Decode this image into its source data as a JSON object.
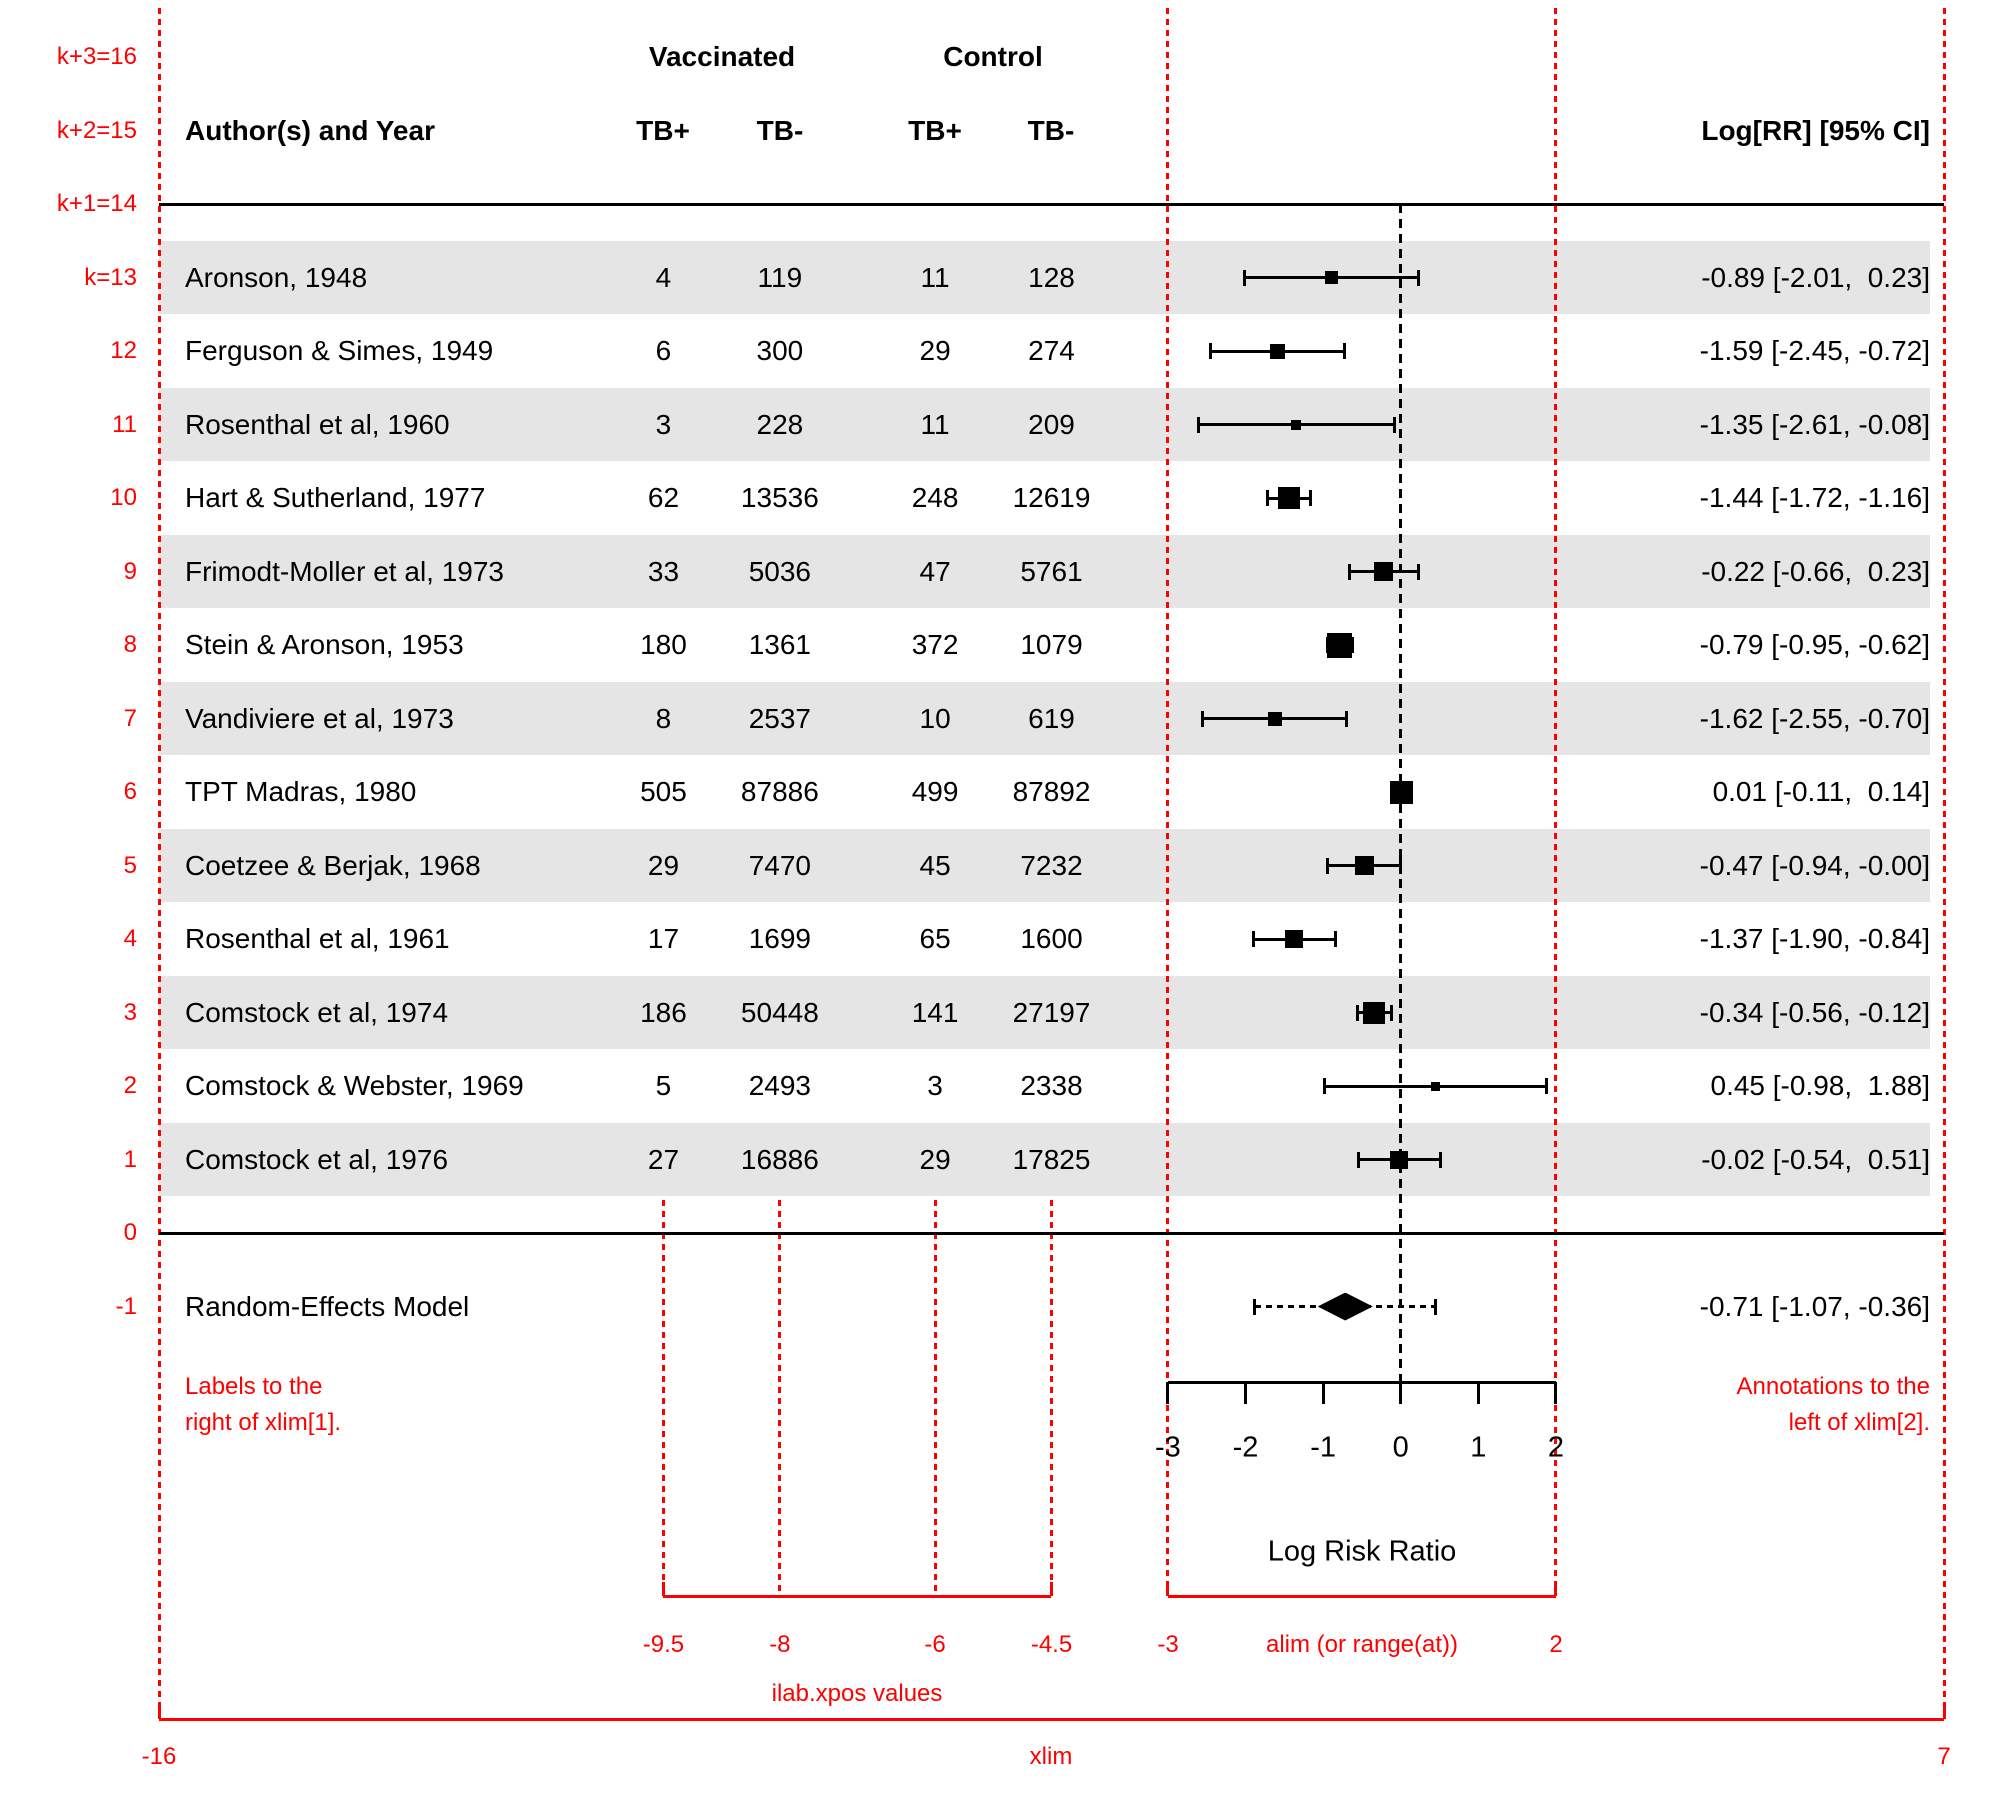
{
  "colors": {
    "accent_red": "#FF0000",
    "band_grey": "#E5E5E5",
    "ink": "#000000"
  },
  "header": {
    "author": "Author(s) and Year",
    "group_vaccinated": "Vaccinated",
    "group_control": "Control",
    "cols": [
      "TB+",
      "TB-",
      "TB+",
      "TB-"
    ],
    "annotation": "Log[RR] [95% CI]"
  },
  "chart_data": {
    "type": "forest",
    "xlabel": "Log Risk Ratio",
    "xlim": [
      -16,
      7
    ],
    "alim": [
      -3,
      2
    ],
    "at": [
      -3,
      -2,
      -1,
      0,
      1,
      2
    ],
    "ilab_xpos": [
      -9.5,
      -8,
      -6,
      -4.5
    ],
    "rows": [
      {
        "row": 13,
        "author": "Aronson, 1948",
        "counts": [
          4,
          119,
          11,
          128
        ],
        "est": -0.89,
        "lo": -2.01,
        "hi": 0.23,
        "size": 13,
        "annotation": "-0.89 [-2.01,  0.23]",
        "shaded": true
      },
      {
        "row": 12,
        "author": "Ferguson & Simes, 1949",
        "counts": [
          6,
          300,
          29,
          274
        ],
        "est": -1.59,
        "lo": -2.45,
        "hi": -0.72,
        "size": 15,
        "annotation": "-1.59 [-2.45, -0.72]",
        "shaded": false
      },
      {
        "row": 11,
        "author": "Rosenthal et al, 1960",
        "counts": [
          3,
          228,
          11,
          209
        ],
        "est": -1.35,
        "lo": -2.61,
        "hi": -0.08,
        "size": 10,
        "annotation": "-1.35 [-2.61, -0.08]",
        "shaded": true
      },
      {
        "row": 10,
        "author": "Hart & Sutherland, 1977",
        "counts": [
          62,
          13536,
          248,
          12619
        ],
        "est": -1.44,
        "lo": -1.72,
        "hi": -1.16,
        "size": 22,
        "annotation": "-1.44 [-1.72, -1.16]",
        "shaded": false
      },
      {
        "row": 9,
        "author": "Frimodt-Moller et al, 1973",
        "counts": [
          33,
          5036,
          47,
          5761
        ],
        "est": -0.22,
        "lo": -0.66,
        "hi": 0.23,
        "size": 19,
        "annotation": "-0.22 [-0.66,  0.23]",
        "shaded": true
      },
      {
        "row": 8,
        "author": "Stein & Aronson, 1953",
        "counts": [
          180,
          1361,
          372,
          1079
        ],
        "est": -0.79,
        "lo": -0.95,
        "hi": -0.62,
        "size": 25,
        "annotation": "-0.79 [-0.95, -0.62]",
        "shaded": false
      },
      {
        "row": 7,
        "author": "Vandiviere et al, 1973",
        "counts": [
          8,
          2537,
          10,
          619
        ],
        "est": -1.62,
        "lo": -2.55,
        "hi": -0.7,
        "size": 14,
        "annotation": "-1.62 [-2.55, -0.70]",
        "shaded": true
      },
      {
        "row": 6,
        "author": "TPT Madras, 1980",
        "counts": [
          505,
          87886,
          499,
          87892
        ],
        "est": 0.01,
        "lo": -0.11,
        "hi": 0.14,
        "size": 23,
        "annotation": "0.01 [-0.11,  0.14]",
        "shaded": false
      },
      {
        "row": 5,
        "author": "Coetzee & Berjak, 1968",
        "counts": [
          29,
          7470,
          45,
          7232
        ],
        "est": -0.47,
        "lo": -0.94,
        "hi": 0.0,
        "size": 19,
        "annotation": "-0.47 [-0.94, -0.00]",
        "shaded": true
      },
      {
        "row": 4,
        "author": "Rosenthal et al, 1961",
        "counts": [
          17,
          1699,
          65,
          1600
        ],
        "est": -1.37,
        "lo": -1.9,
        "hi": -0.84,
        "size": 18,
        "annotation": "-1.37 [-1.90, -0.84]",
        "shaded": false
      },
      {
        "row": 3,
        "author": "Comstock et al, 1974",
        "counts": [
          186,
          50448,
          141,
          27197
        ],
        "est": -0.34,
        "lo": -0.56,
        "hi": -0.12,
        "size": 22,
        "annotation": "-0.34 [-0.56, -0.12]",
        "shaded": true
      },
      {
        "row": 2,
        "author": "Comstock & Webster, 1969",
        "counts": [
          5,
          2493,
          3,
          2338
        ],
        "est": 0.45,
        "lo": -0.98,
        "hi": 1.88,
        "size": 9,
        "annotation": "0.45 [-0.98,  1.88]",
        "shaded": false
      },
      {
        "row": 1,
        "author": "Comstock et al, 1976",
        "counts": [
          27,
          16886,
          29,
          17825
        ],
        "est": -0.02,
        "lo": -0.54,
        "hi": 0.51,
        "size": 18,
        "annotation": "-0.02 [-0.54,  0.51]",
        "shaded": true
      }
    ],
    "summary": {
      "row": -1,
      "label": "Random-Effects Model",
      "est": -0.71,
      "lo": -1.07,
      "hi": -0.36,
      "pred_lo": -1.88,
      "pred_hi": 0.45,
      "annotation": "-0.71 [-1.07, -0.36]"
    }
  },
  "row_guide": {
    "labels": [
      "k+3=16",
      "k+2=15",
      "k+1=14",
      "k=13",
      "12",
      "11",
      "10",
      "9",
      "8",
      "7",
      "6",
      "5",
      "4",
      "3",
      "2",
      "1",
      "0",
      "-1"
    ],
    "rows": [
      16,
      15,
      14,
      13,
      12,
      11,
      10,
      9,
      8,
      7,
      6,
      5,
      4,
      3,
      2,
      1,
      0,
      -1
    ]
  },
  "red_annotations": {
    "labels_note_line1": "Labels to the",
    "labels_note_line2": "right of xlim[1].",
    "annotations_note_line1": "Annotations to the",
    "annotations_note_line2": "left of xlim[2].",
    "ilab_axis": {
      "ticks": [
        "-9.5",
        "-8",
        "-6",
        "-4.5"
      ],
      "caption": "ilab.xpos values"
    },
    "alim_axis": {
      "left": "-3",
      "caption": "alim (or range(at))",
      "right": "2"
    },
    "xlim_axis": {
      "left": "-16",
      "caption": "xlim",
      "right": "7"
    }
  }
}
